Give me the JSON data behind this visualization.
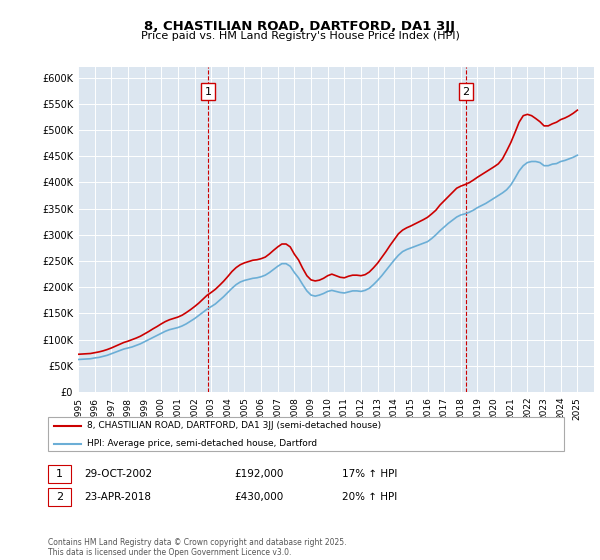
{
  "title": "8, CHASTILIAN ROAD, DARTFORD, DA1 3JJ",
  "subtitle": "Price paid vs. HM Land Registry's House Price Index (HPI)",
  "background_color": "#dce6f0",
  "plot_bg_color": "#dce6f0",
  "ylabel_color": "#000000",
  "xlabel_color": "#000000",
  "ylim": [
    0,
    620000
  ],
  "yticks": [
    0,
    50000,
    100000,
    150000,
    200000,
    250000,
    300000,
    350000,
    400000,
    450000,
    500000,
    550000,
    600000
  ],
  "ytick_labels": [
    "£0",
    "£50K",
    "£100K",
    "£150K",
    "£200K",
    "£250K",
    "£300K",
    "£350K",
    "£400K",
    "£450K",
    "£500K",
    "£550K",
    "£600K"
  ],
  "xlim_start": 1995,
  "xlim_end": 2026,
  "xtick_years": [
    1995,
    1996,
    1997,
    1998,
    1999,
    2000,
    2001,
    2002,
    2003,
    2004,
    2005,
    2006,
    2007,
    2008,
    2009,
    2010,
    2011,
    2012,
    2013,
    2014,
    2015,
    2016,
    2017,
    2018,
    2019,
    2020,
    2021,
    2022,
    2023,
    2024,
    2025
  ],
  "hpi_color": "#6baed6",
  "price_color": "#cc0000",
  "marker1_x": 2002.83,
  "marker1_y": 192000,
  "marker1_label": "1",
  "marker1_date": "29-OCT-2002",
  "marker1_price": "£192,000",
  "marker1_hpi": "17% ↑ HPI",
  "marker2_x": 2018.31,
  "marker2_y": 430000,
  "marker2_label": "2",
  "marker2_date": "23-APR-2018",
  "marker2_price": "£430,000",
  "marker2_hpi": "20% ↑ HPI",
  "legend_line1": "8, CHASTILIAN ROAD, DARTFORD, DA1 3JJ (semi-detached house)",
  "legend_line2": "HPI: Average price, semi-detached house, Dartford",
  "footnote": "Contains HM Land Registry data © Crown copyright and database right 2025.\nThis data is licensed under the Open Government Licence v3.0.",
  "hpi_data_x": [
    1995,
    1995.25,
    1995.5,
    1995.75,
    1996,
    1996.25,
    1996.5,
    1996.75,
    1997,
    1997.25,
    1997.5,
    1997.75,
    1998,
    1998.25,
    1998.5,
    1998.75,
    1999,
    1999.25,
    1999.5,
    1999.75,
    2000,
    2000.25,
    2000.5,
    2000.75,
    2001,
    2001.25,
    2001.5,
    2001.75,
    2002,
    2002.25,
    2002.5,
    2002.75,
    2003,
    2003.25,
    2003.5,
    2003.75,
    2004,
    2004.25,
    2004.5,
    2004.75,
    2005,
    2005.25,
    2005.5,
    2005.75,
    2006,
    2006.25,
    2006.5,
    2006.75,
    2007,
    2007.25,
    2007.5,
    2007.75,
    2008,
    2008.25,
    2008.5,
    2008.75,
    2009,
    2009.25,
    2009.5,
    2009.75,
    2010,
    2010.25,
    2010.5,
    2010.75,
    2011,
    2011.25,
    2011.5,
    2011.75,
    2012,
    2012.25,
    2012.5,
    2012.75,
    2013,
    2013.25,
    2013.5,
    2013.75,
    2014,
    2014.25,
    2014.5,
    2014.75,
    2015,
    2015.25,
    2015.5,
    2015.75,
    2016,
    2016.25,
    2016.5,
    2016.75,
    2017,
    2017.25,
    2017.5,
    2017.75,
    2018,
    2018.25,
    2018.5,
    2018.75,
    2019,
    2019.25,
    2019.5,
    2019.75,
    2020,
    2020.25,
    2020.5,
    2020.75,
    2021,
    2021.25,
    2021.5,
    2021.75,
    2022,
    2022.25,
    2022.5,
    2022.75,
    2023,
    2023.25,
    2023.5,
    2023.75,
    2024,
    2024.25,
    2024.5,
    2024.75,
    2025
  ],
  "hpi_data_y": [
    62000,
    62500,
    63000,
    63500,
    65000,
    66000,
    68000,
    70000,
    73000,
    76000,
    79000,
    82000,
    84000,
    86000,
    89000,
    92000,
    96000,
    100000,
    104000,
    108000,
    112000,
    116000,
    119000,
    121000,
    123000,
    126000,
    130000,
    135000,
    140000,
    146000,
    152000,
    158000,
    163000,
    168000,
    175000,
    182000,
    190000,
    198000,
    205000,
    210000,
    213000,
    215000,
    217000,
    218000,
    220000,
    223000,
    228000,
    234000,
    240000,
    245000,
    245000,
    240000,
    228000,
    218000,
    205000,
    193000,
    185000,
    183000,
    185000,
    188000,
    192000,
    194000,
    192000,
    190000,
    189000,
    191000,
    193000,
    193000,
    192000,
    194000,
    198000,
    205000,
    213000,
    222000,
    232000,
    242000,
    252000,
    261000,
    268000,
    272000,
    275000,
    278000,
    281000,
    284000,
    287000,
    293000,
    300000,
    308000,
    315000,
    322000,
    328000,
    334000,
    338000,
    340000,
    343000,
    347000,
    352000,
    356000,
    360000,
    365000,
    370000,
    375000,
    380000,
    386000,
    395000,
    408000,
    422000,
    432000,
    438000,
    440000,
    440000,
    438000,
    432000,
    432000,
    435000,
    436000,
    440000,
    442000,
    445000,
    448000,
    452000
  ],
  "price_data_x": [
    1995,
    1995.25,
    1995.5,
    1995.75,
    1996,
    1996.25,
    1996.5,
    1996.75,
    1997,
    1997.25,
    1997.5,
    1997.75,
    1998,
    1998.25,
    1998.5,
    1998.75,
    1999,
    1999.25,
    1999.5,
    1999.75,
    2000,
    2000.25,
    2000.5,
    2000.75,
    2001,
    2001.25,
    2001.5,
    2001.75,
    2002,
    2002.25,
    2002.5,
    2002.75,
    2003,
    2003.25,
    2003.5,
    2003.75,
    2004,
    2004.25,
    2004.5,
    2004.75,
    2005,
    2005.25,
    2005.5,
    2005.75,
    2006,
    2006.25,
    2006.5,
    2006.75,
    2007,
    2007.25,
    2007.5,
    2007.75,
    2008,
    2008.25,
    2008.5,
    2008.75,
    2009,
    2009.25,
    2009.5,
    2009.75,
    2010,
    2010.25,
    2010.5,
    2010.75,
    2011,
    2011.25,
    2011.5,
    2011.75,
    2012,
    2012.25,
    2012.5,
    2012.75,
    2013,
    2013.25,
    2013.5,
    2013.75,
    2014,
    2014.25,
    2014.5,
    2014.75,
    2015,
    2015.25,
    2015.5,
    2015.75,
    2016,
    2016.25,
    2016.5,
    2016.75,
    2017,
    2017.25,
    2017.5,
    2017.75,
    2018,
    2018.25,
    2018.5,
    2018.75,
    2019,
    2019.25,
    2019.5,
    2019.75,
    2020,
    2020.25,
    2020.5,
    2020.75,
    2021,
    2021.25,
    2021.5,
    2021.75,
    2022,
    2022.25,
    2022.5,
    2022.75,
    2023,
    2023.25,
    2023.5,
    2023.75,
    2024,
    2024.25,
    2024.5,
    2024.75,
    2025
  ],
  "price_data_y": [
    72000,
    72500,
    73000,
    73500,
    75000,
    76500,
    78500,
    81000,
    84000,
    87500,
    91000,
    94500,
    97000,
    100000,
    103000,
    106500,
    111000,
    115500,
    120500,
    125000,
    130000,
    134500,
    138000,
    140500,
    143000,
    146500,
    151500,
    157000,
    163000,
    169500,
    177000,
    184500,
    190000,
    196000,
    203500,
    211500,
    220500,
    230000,
    237500,
    243000,
    246500,
    249000,
    251500,
    252500,
    254500,
    257500,
    263500,
    270500,
    277000,
    282500,
    282500,
    277000,
    263000,
    252000,
    236000,
    222000,
    214000,
    212000,
    213500,
    217000,
    222000,
    225000,
    222000,
    219000,
    218000,
    221000,
    223000,
    223000,
    222000,
    224000,
    229000,
    237000,
    246000,
    257000,
    268000,
    280000,
    291000,
    302000,
    309000,
    313500,
    317000,
    321000,
    325000,
    329000,
    333500,
    340000,
    347000,
    357000,
    365000,
    373000,
    381000,
    389000,
    393000,
    396000,
    399500,
    404500,
    410000,
    415000,
    420000,
    425000,
    430000,
    435500,
    445000,
    460000,
    476000,
    495000,
    515000,
    527500,
    530000,
    527500,
    522000,
    516000,
    508000,
    508000,
    512000,
    515000,
    520000,
    523000,
    527000,
    532000,
    538000
  ]
}
